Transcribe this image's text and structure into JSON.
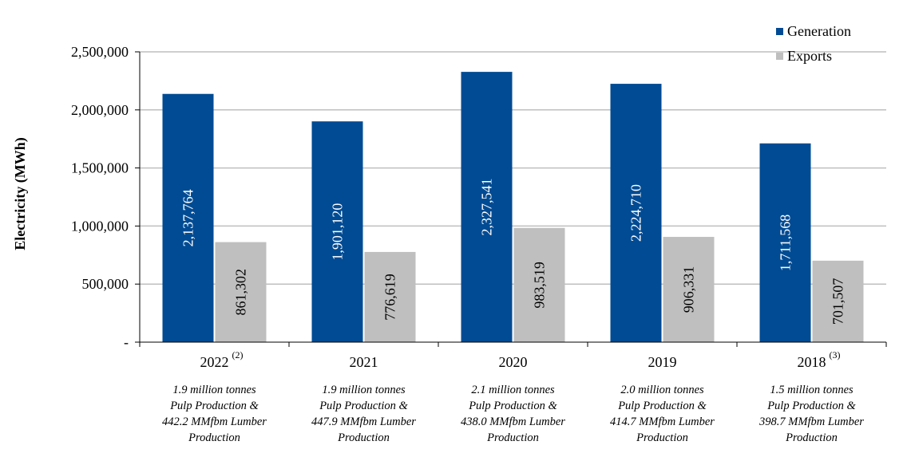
{
  "chart_data": {
    "type": "bar",
    "title": "",
    "xlabel": "",
    "ylabel": "Electricity (MWh)",
    "ylim": [
      0,
      2500000
    ],
    "yticks": [
      {
        "value": 0,
        "label": "-"
      },
      {
        "value": 500000,
        "label": "500,000"
      },
      {
        "value": 1000000,
        "label": "1,000,000"
      },
      {
        "value": 1500000,
        "label": "1,500,000"
      },
      {
        "value": 2000000,
        "label": "2,000,000"
      },
      {
        "value": 2500000,
        "label": "2,500,000"
      }
    ],
    "grid": true,
    "legend_position": "top-right",
    "categories": [
      "2022",
      "2021",
      "2020",
      "2019",
      "2018"
    ],
    "category_footnotes": [
      "(2)",
      "",
      "",
      "",
      "(3)"
    ],
    "category_notes": [
      [
        "1.9 million tonnes",
        "Pulp Production &",
        "442.2 MMfbm Lumber",
        "Production"
      ],
      [
        "1.9 million tonnes",
        "Pulp Production &",
        "447.9 MMfbm Lumber",
        "Production"
      ],
      [
        "2.1 million tonnes",
        "Pulp Production &",
        "438.0 MMfbm Lumber",
        "Production"
      ],
      [
        "2.0 million tonnes",
        "Pulp Production &",
        "414.7 MMfbm Lumber",
        "Production"
      ],
      [
        "1.5 million tonnes",
        "Pulp Production &",
        "398.7 MMfbm Lumber",
        "Production"
      ]
    ],
    "series": [
      {
        "name": "Generation",
        "color": "#004B93",
        "label_color": "#ffffff",
        "values": [
          2137764,
          1901120,
          2327541,
          2224710,
          1711568
        ],
        "labels": [
          "2,137,764",
          "1,901,120",
          "2,327,541",
          "2,224,710",
          "1,711,568"
        ]
      },
      {
        "name": "Exports",
        "color": "#BFBFBF",
        "label_color": "#000000",
        "values": [
          861302,
          776619,
          983519,
          906331,
          701507
        ],
        "labels": [
          "861,302",
          "776,619",
          "983,519",
          "906,331",
          "701,507"
        ]
      }
    ]
  }
}
